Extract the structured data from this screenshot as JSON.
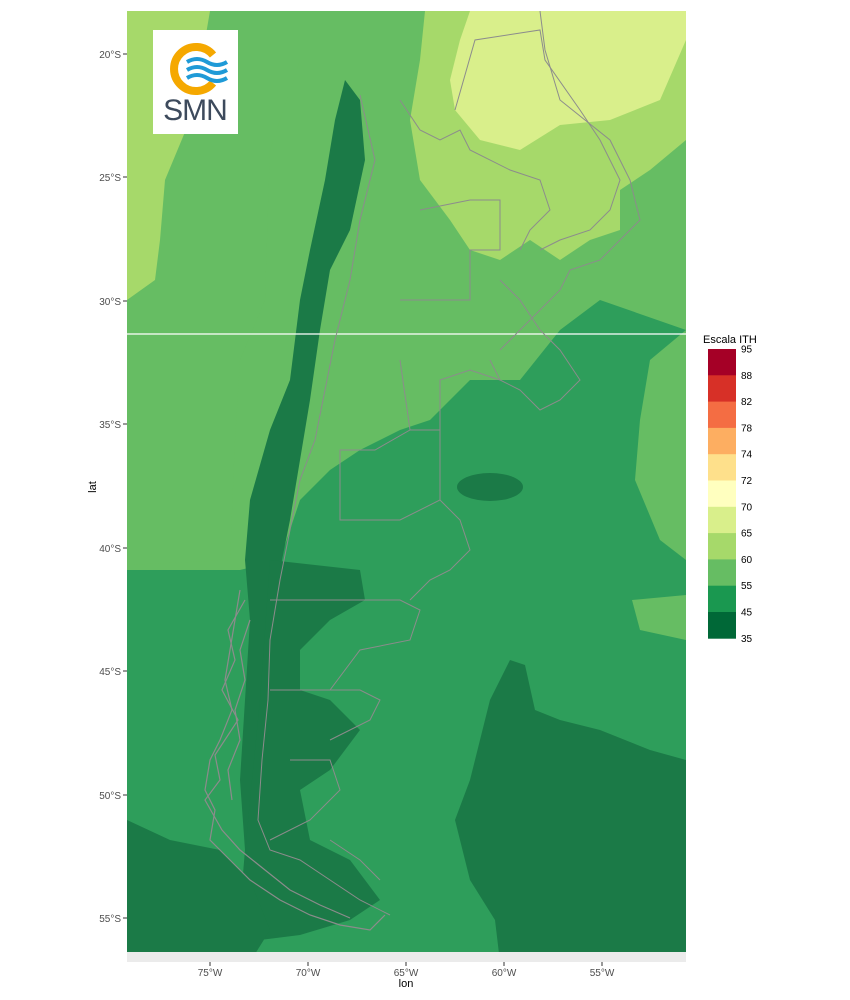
{
  "axes": {
    "x_title": "lon",
    "y_title": "lat",
    "x_ticks": [
      "75°W",
      "70°W",
      "65°W",
      "60°W",
      "55°W"
    ],
    "y_ticks": [
      "20°S",
      "25°S",
      "30°S",
      "35°S",
      "40°S",
      "45°S",
      "50°S",
      "55°S"
    ]
  },
  "legend": {
    "title": "Escala ITH",
    "labels": [
      "95",
      "88",
      "82",
      "78",
      "74",
      "72",
      "70",
      "65",
      "60",
      "55",
      "45",
      "35"
    ],
    "colors": [
      "#a50026",
      "#d73027",
      "#f46d43",
      "#fdae61",
      "#fee08b",
      "#ffffbf",
      "#d9ef8b",
      "#a6d96a",
      "#66bd63",
      "#1a9850",
      "#006837"
    ]
  },
  "logo": {
    "text": "SMN",
    "colors": {
      "ring": "#f5a800",
      "waves": "#1f9ad7",
      "text": "#3d4a5c"
    }
  },
  "map_colors": {
    "c35_45": "#1b7a47",
    "c45_55": "#2e9e5b",
    "c55_60": "#66bd63",
    "c60_65": "#a6d96a",
    "c65_70": "#d9ef8b",
    "borders": "#8c8c8c"
  }
}
